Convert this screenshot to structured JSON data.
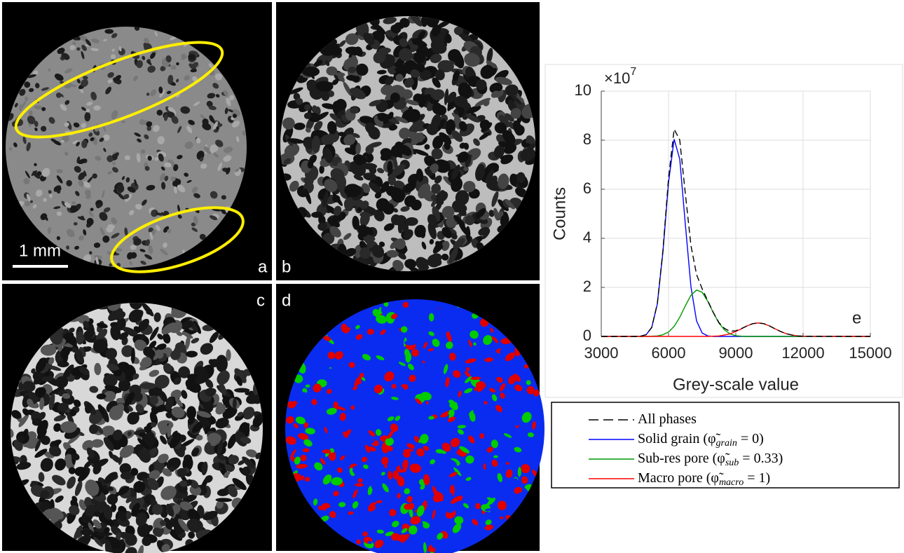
{
  "panels": [
    {
      "label": "a"
    },
    {
      "label": "b"
    },
    {
      "label": "c"
    },
    {
      "label": "d"
    }
  ],
  "scale_bar": "1 mm",
  "chart_data": {
    "type": "line",
    "panel_label": "e",
    "xlabel": "Grey-scale value",
    "ylabel": "Counts",
    "y_multiplier": "×10",
    "y_multiplier_exp": "7",
    "x": [
      3000,
      4500,
      4750,
      5000,
      5250,
      5500,
      5750,
      6000,
      6250,
      6500,
      6750,
      7000,
      7250,
      7500,
      7750,
      8000,
      8250,
      8500,
      8750,
      9000,
      9250,
      9500,
      9750,
      10000,
      10250,
      10500,
      10750,
      11000,
      11250,
      11500,
      11750,
      12000,
      15000
    ],
    "series": [
      {
        "name": "All phases",
        "name_math": [],
        "color": "#000000",
        "dash": true,
        "values": [
          0,
          0,
          0.01,
          0.07,
          0.37,
          1.34,
          3.51,
          6.46,
          8.45,
          8.01,
          5.81,
          3.7,
          2.52,
          1.94,
          1.45,
          0.97,
          0.56,
          0.32,
          0.21,
          0.23,
          0.32,
          0.43,
          0.52,
          0.55,
          0.52,
          0.43,
          0.31,
          0.2,
          0.11,
          0.06,
          0.02,
          0.01,
          0
        ]
      },
      {
        "name": "Solid grain",
        "name_math": [
          " (φ̃",
          "grain",
          " = 0)"
        ],
        "color": "#0000ff",
        "dash": false,
        "values": [
          0,
          0,
          0.01,
          0.07,
          0.36,
          1.32,
          3.44,
          6.28,
          8.04,
          7.23,
          4.56,
          2.02,
          0.63,
          0.14,
          0.02,
          0,
          0,
          0,
          0,
          0,
          0,
          0,
          0,
          0,
          0,
          0,
          0,
          0,
          0,
          0,
          0,
          0,
          0
        ]
      },
      {
        "name": "Sub-res pore",
        "name_math": [
          " (φ̃",
          "sub",
          " = 0.33)"
        ],
        "color": "#009900",
        "dash": false,
        "values": [
          0,
          0,
          0,
          0,
          0.01,
          0.02,
          0.07,
          0.18,
          0.41,
          0.78,
          1.25,
          1.68,
          1.89,
          1.8,
          1.43,
          0.96,
          0.54,
          0.26,
          0.1,
          0.03,
          0.01,
          0,
          0,
          0,
          0,
          0,
          0,
          0,
          0,
          0,
          0,
          0,
          0
        ]
      },
      {
        "name": "Macro pore",
        "name_math": [
          " (φ̃",
          "macro",
          " = 1)"
        ],
        "color": "#ff0000",
        "dash": false,
        "values": [
          0,
          0,
          0,
          0,
          0,
          0,
          0,
          0,
          0,
          0,
          0,
          0,
          0,
          0,
          0,
          0.01,
          0.02,
          0.06,
          0.11,
          0.2,
          0.31,
          0.43,
          0.52,
          0.55,
          0.52,
          0.43,
          0.31,
          0.2,
          0.11,
          0.06,
          0.02,
          0.01,
          0
        ]
      }
    ],
    "xlim": [
      3000,
      15000
    ],
    "xticks": [
      3000,
      6000,
      9000,
      12000,
      15000
    ],
    "ylim": [
      0,
      10
    ],
    "yticks": [
      0,
      2,
      4,
      6,
      8,
      10
    ],
    "grid": true
  }
}
